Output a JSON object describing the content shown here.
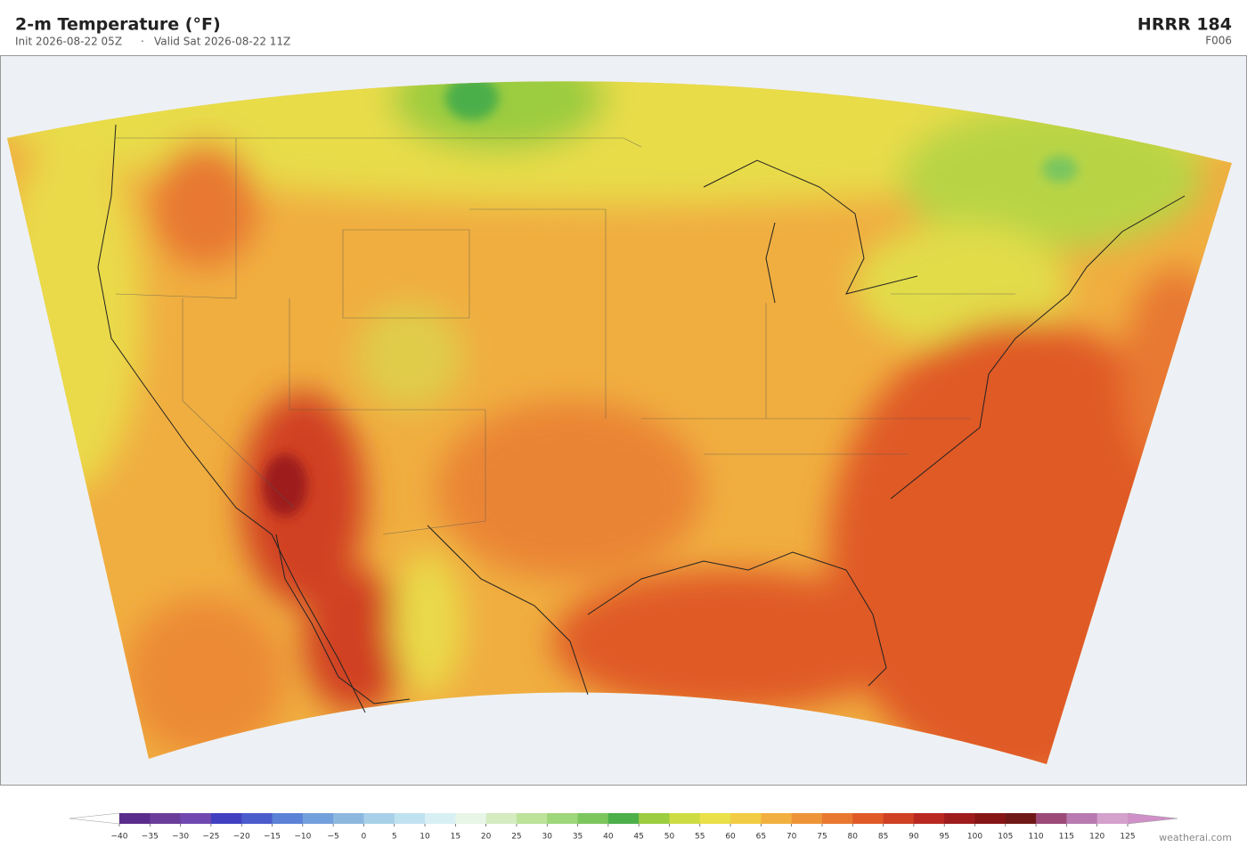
{
  "header": {
    "title": "2-m Temperature  (°F)",
    "init": "Init 2026-08-22 05Z",
    "separator": "·",
    "valid": "Valid Sat 2026-08-22 11Z",
    "model": "HRRR  184",
    "forecast_hour": "F006"
  },
  "colorbar": {
    "ticks": [
      {
        "value": -40,
        "label": "−40"
      },
      {
        "value": -35,
        "label": "−35"
      },
      {
        "value": -30,
        "label": "−30"
      },
      {
        "value": -25,
        "label": "−25"
      },
      {
        "value": -20,
        "label": "−20"
      },
      {
        "value": -15,
        "label": "−15"
      },
      {
        "value": -10,
        "label": "−10"
      },
      {
        "value": -5,
        "label": "−5"
      },
      0,
      5,
      10,
      15,
      20,
      25,
      30,
      35,
      40,
      45,
      50,
      55,
      60,
      65,
      70,
      75,
      80,
      85,
      90,
      95,
      100,
      105,
      110,
      115,
      120,
      125
    ],
    "colors": [
      "#5a2d8c",
      "#6a3d9a",
      "#7048b0",
      "#4040c0",
      "#4a5ccc",
      "#5b82d6",
      "#72a0dc",
      "#8cb8e0",
      "#a8d0e8",
      "#c0e2f0",
      "#d8f0f4",
      "#e8f6e8",
      "#d4ecc0",
      "#bde29a",
      "#9ed67a",
      "#7cc65e",
      "#4caf4a",
      "#9ccc40",
      "#cedc44",
      "#eae04a",
      "#f2cc44",
      "#f2b040",
      "#ee9438",
      "#e87830",
      "#e05a28",
      "#d04024",
      "#b82820",
      "#9e1c1c",
      "#861616",
      "#701818",
      "#9c4a78",
      "#b87ab0",
      "#d4a0cc"
    ],
    "under_color": "#ffffff",
    "over_color": "#d090c8"
  },
  "watermark": "weatherai.com"
}
